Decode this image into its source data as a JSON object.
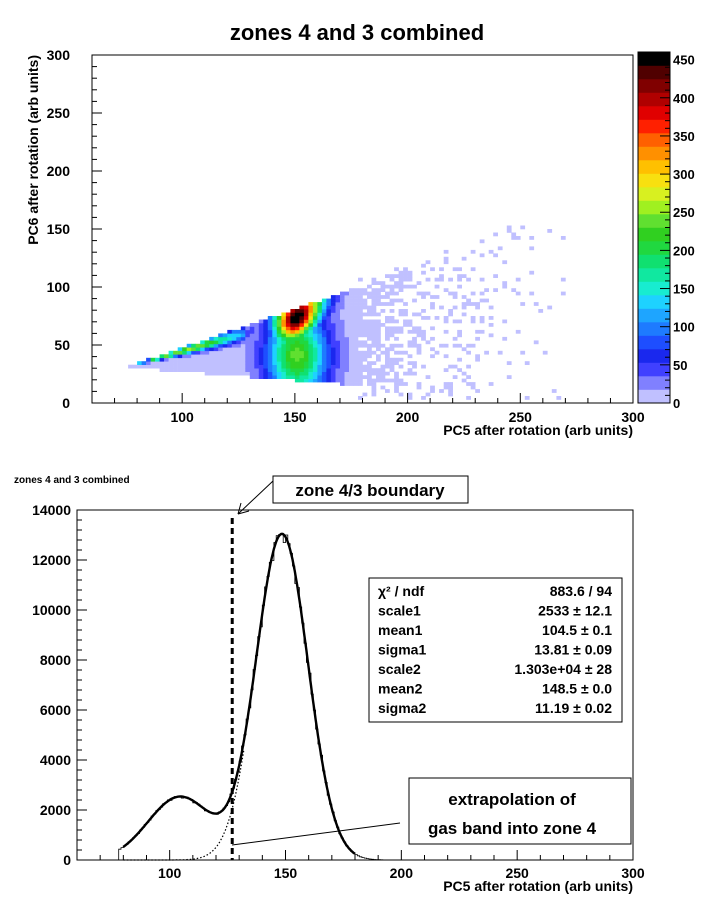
{
  "chart_data": [
    {
      "type": "heatmap",
      "title": "zones 4 and 3 combined",
      "xlabel": "PC5 after rotation (arb units)",
      "ylabel": "PC6 after rotation (arb units)",
      "xlim": [
        60,
        300
      ],
      "ylim": [
        0,
        300
      ],
      "x_ticks": [
        100,
        150,
        200,
        250,
        300
      ],
      "y_ticks": [
        0,
        50,
        100,
        150,
        200,
        250,
        300
      ],
      "colorbar": {
        "range": [
          0,
          460
        ],
        "ticks": [
          0,
          50,
          100,
          150,
          200,
          250,
          300,
          350,
          400,
          450
        ],
        "colors": [
          "#c0c0ff",
          "#8080ff",
          "#4040ff",
          "#1a28ee",
          "#1e4eff",
          "#1e7bff",
          "#1ea5ff",
          "#1ed2ff",
          "#18ecd0",
          "#10e8a0",
          "#10e070",
          "#20d840",
          "#30d020",
          "#60e030",
          "#a0f020",
          "#d8f020",
          "#f8e010",
          "#ffc000",
          "#ff9000",
          "#ff6000",
          "#ff2000",
          "#e00000",
          "#b00000",
          "#800000",
          "#500000",
          "#000000"
        ]
      },
      "density_regions": [
        {
          "region": "wedge outline",
          "points": [
            [
              75,
              30
            ],
            [
              176,
              98
            ],
            [
              240,
              142
            ],
            [
              250,
              0
            ],
            [
              176,
              14
            ],
            [
              75,
              29
            ]
          ],
          "level": 5
        },
        {
          "region": "left band ridge",
          "x_range": [
            80,
            125
          ],
          "peak": 250
        },
        {
          "region": "main ridge",
          "x_center": 150,
          "y_center": 75,
          "peak": 460
        }
      ]
    },
    {
      "type": "line",
      "title": "zones 4 and 3 combined",
      "xlabel": "PC5 after rotation (arb units)",
      "ylabel": "",
      "xlim": [
        60,
        300
      ],
      "ylim": [
        0,
        14000
      ],
      "x_ticks": [
        100,
        150,
        200,
        250,
        300
      ],
      "y_ticks": [
        0,
        2000,
        4000,
        6000,
        8000,
        10000,
        12000,
        14000
      ],
      "fit_model": {
        "scale1": 2533,
        "mean1": 104.5,
        "sigma1": 13.81,
        "scale2": 13030,
        "mean2": 148.5,
        "sigma2": 11.19,
        "x_range": [
          80,
          200
        ]
      },
      "series": [],
      "boundary_x": 127,
      "stats": [
        {
          "label": "χ² / ndf",
          "value": "883.6 / 94"
        },
        {
          "label": "scale1",
          "value": "2533 ± 12.1"
        },
        {
          "label": "mean1",
          "value": "104.5 ± 0.1"
        },
        {
          "label": "sigma1",
          "value": "13.81 ± 0.09"
        },
        {
          "label": "scale2",
          "value": "1.303e+04 ± 28"
        },
        {
          "label": "mean2",
          "value": "148.5 ± 0.0"
        },
        {
          "label": "sigma2",
          "value": "11.19 ± 0.02"
        }
      ],
      "annotations": {
        "boundary": "zone 4/3 boundary",
        "extrapolation_line1": "extrapolation of",
        "extrapolation_line2": "gas band into zone 4"
      }
    }
  ]
}
